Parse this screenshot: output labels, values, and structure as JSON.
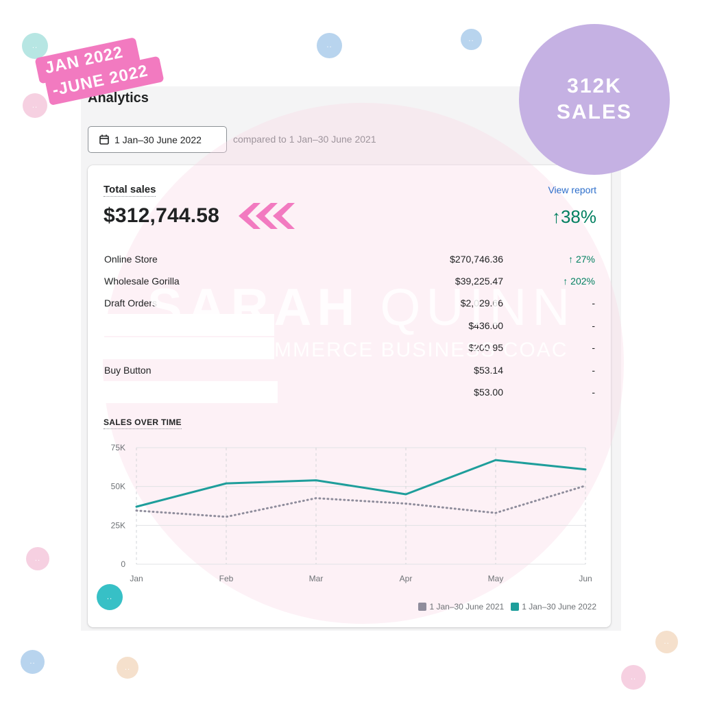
{
  "page": {
    "title": "Analytics"
  },
  "date_range": {
    "button_label": "1 Jan–30 June 2022",
    "compared_text": "compared to 1 Jan–30 June 2021"
  },
  "total_sales": {
    "label": "Total sales",
    "value": "$312,744.58",
    "view_report": "View report",
    "change": "↑38%"
  },
  "channels": [
    {
      "name": "Online Store",
      "value": "$270,746.36",
      "change": "↑ 27%",
      "up": true
    },
    {
      "name": "Wholesale Gorilla",
      "value": "$39,225.47",
      "change": "↑ 202%",
      "up": true
    },
    {
      "name": "Draft Orders",
      "value": "$2,029.66",
      "change": "-",
      "up": false
    },
    {
      "name": "",
      "value": "$436.00",
      "change": "-",
      "up": false
    },
    {
      "name": "",
      "value": "$200.95",
      "change": "-",
      "up": false
    },
    {
      "name": "Buy Button",
      "value": "$53.14",
      "change": "-",
      "up": false
    },
    {
      "name": "",
      "value": "$53.00",
      "change": "-",
      "up": false
    }
  ],
  "chart_section": {
    "title": "SALES OVER TIME"
  },
  "chart_data": {
    "type": "line",
    "title": "SALES OVER TIME",
    "categories": [
      "Jan",
      "Feb",
      "Mar",
      "Apr",
      "May",
      "Jun"
    ],
    "y_ticks": [
      "0",
      "25K",
      "50K",
      "75K"
    ],
    "ylim": [
      0,
      75000
    ],
    "grid": true,
    "legend_position": "bottom-right",
    "series": [
      {
        "name": "1 Jan–30 June 2021",
        "values": [
          34500,
          30500,
          42500,
          39000,
          33000,
          50500
        ],
        "color": "#8f8d9c",
        "style": "dotted"
      },
      {
        "name": "1 Jan–30 June 2022",
        "values": [
          37000,
          52000,
          54000,
          45000,
          67000,
          61000
        ],
        "color": "#1e9e9b",
        "style": "solid"
      }
    ]
  },
  "badges": {
    "date_line1": "JAN 2022",
    "date_line2": "-JUNE 2022",
    "sales_line1": "312K",
    "sales_line2": "SALES"
  },
  "watermark": {
    "name_bold": "SARAH",
    "name_thin": " QUINN",
    "subtitle": "MMERCE BUSINESS COAC"
  },
  "colors": {
    "accent_teal": "#1e9e9b",
    "comparison_gray": "#8f8d9c",
    "positive_green": "#007f5f",
    "link_blue": "#2c6ecb",
    "badge_pink": "#f27ac0",
    "badge_purple": "#c5b1e3"
  },
  "icons": {
    "date_button": "calendar-icon",
    "total_pointer": "chevrons-left-icon"
  }
}
